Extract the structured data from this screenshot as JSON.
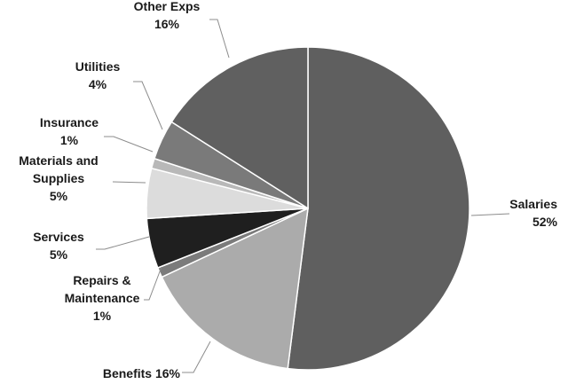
{
  "chart_data": {
    "type": "pie",
    "title": "",
    "slices": [
      {
        "category": "Salaries",
        "value": 52,
        "label_lines": [
          "Salaries",
          "52%"
        ],
        "color": "#5f5f5f"
      },
      {
        "category": "Benefits",
        "value": 16,
        "label_lines": [
          "Benefits 16%"
        ],
        "color": "#ababab"
      },
      {
        "category": "Repairs & Maintenance",
        "value": 1,
        "label_lines": [
          "Repairs &",
          "Maintenance",
          "1%"
        ],
        "color": "#7b7b7b"
      },
      {
        "category": "Services",
        "value": 5,
        "label_lines": [
          "Services",
          "5%"
        ],
        "color": "#1f1f1f"
      },
      {
        "category": "Materials and Supplies",
        "value": 5,
        "label_lines": [
          "Materials and",
          "Supplies",
          "5%"
        ],
        "color": "#dcdcdc"
      },
      {
        "category": "Insurance",
        "value": 1,
        "label_lines": [
          "Insurance",
          "1%"
        ],
        "color": "#b8b8b8"
      },
      {
        "category": "Utilities",
        "value": 4,
        "label_lines": [
          "Utilities",
          "4%"
        ],
        "color": "#7a7a7a"
      },
      {
        "category": "Other Exps",
        "value": 16,
        "label_lines": [
          "Other Exps",
          "16%"
        ],
        "color": "#606060"
      }
    ],
    "start": "12 o'clock",
    "direction": "clockwise",
    "legend": "none",
    "data_labels": "outside with leader lines"
  }
}
